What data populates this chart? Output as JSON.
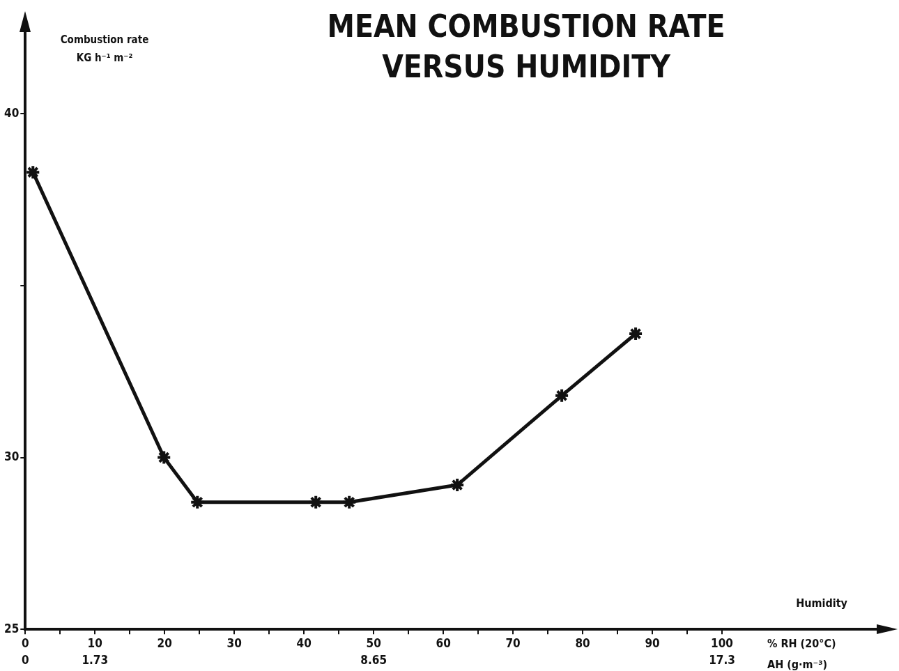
{
  "chart_data": {
    "type": "line",
    "title": "MEAN COMBUSTION RATE\nVERSUS HUMIDITY",
    "ylabel": "Combustion rate\nKG h⁻¹ m⁻²",
    "xlabel": "% RH (20°C)",
    "x2label": "AH (g·m⁻³)",
    "annotations": [
      "Humidity"
    ],
    "x": [
      1.1,
      19.9,
      24.7,
      41.7,
      46.5,
      62,
      77,
      87.6
    ],
    "series": [
      {
        "color": "#111111",
        "values": [
          38.3,
          30.0,
          28.7,
          28.7,
          28.7,
          29.2,
          31.8,
          33.6
        ]
      }
    ],
    "xlim": [
      0,
      124
    ],
    "xticks": [
      0,
      {
        "value": 5,
        "label": null
      },
      10,
      {
        "value": 15,
        "label": null
      },
      20,
      {
        "value": 25,
        "label": null
      },
      30,
      {
        "value": 35,
        "label": null
      },
      40,
      {
        "value": 45,
        "label": null
      },
      50,
      {
        "value": 55,
        "label": null
      },
      60,
      {
        "value": 65,
        "label": null
      },
      70,
      {
        "value": 75,
        "label": null
      },
      80,
      {
        "value": 85,
        "label": null
      },
      90,
      {
        "value": 95,
        "label": null
      },
      100
    ],
    "x2lim": [
      0,
      21.452
    ],
    "x2ticks": [
      0,
      1.73,
      8.65,
      17.3
    ],
    "ylim": [
      25,
      42.5
    ],
    "yticks": [
      25,
      30,
      {
        "value": 35,
        "label": null
      },
      40
    ],
    "grid": false,
    "legend": false,
    "marker": "cross",
    "line_style": "solid"
  }
}
